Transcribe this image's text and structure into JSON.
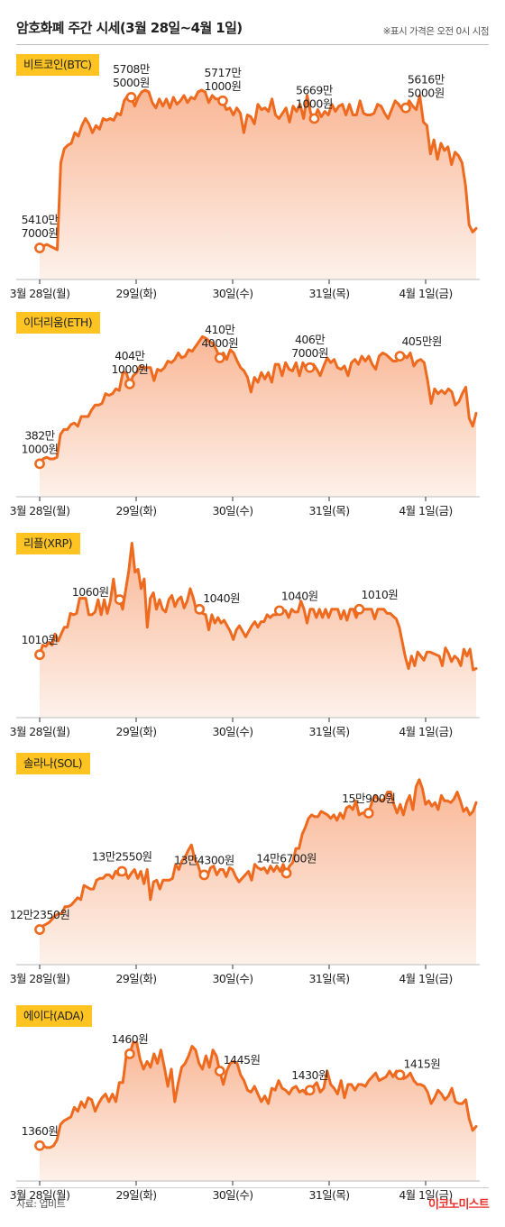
{
  "header": {
    "title": "암호화폐 주간 시세(3월 28일~4월 1일)",
    "note": "※표시 가격은 오전 0시 시점"
  },
  "footer": {
    "source": "자료: 업비트",
    "logo": "이코노미스트"
  },
  "colors": {
    "line": "#ee6a1e",
    "fill_top": "#f9b796",
    "fill_bottom": "#fdf1ea",
    "label_bg": "#ffc421",
    "marker_fill": "#ffffff"
  },
  "chart_data": [
    {
      "type": "area",
      "coin": "비트코인(BTC)",
      "x_ticks": [
        "3월 28일(월)",
        "29일(화)",
        "30일(수)",
        "31일(목)",
        "4월 1일(금)"
      ],
      "ylim": [
        0.055,
        0.96
      ],
      "series": [
        {
          "values": [
            0.07,
            0.08,
            0.09,
            0.08,
            0.07,
            0.06,
            0.55,
            0.63,
            0.65,
            0.66,
            0.72,
            0.7,
            0.76,
            0.8,
            0.77,
            0.72,
            0.76,
            0.74,
            0.8,
            0.79,
            0.8,
            0.79,
            0.83,
            0.82,
            0.9,
            0.93,
            0.92,
            0.87,
            0.92,
            0.95,
            0.96,
            0.95,
            0.89,
            0.86,
            0.91,
            0.87,
            0.91,
            0.86,
            0.92,
            0.88,
            0.9,
            0.93,
            0.89,
            0.92,
            0.91,
            0.95,
            0.96,
            0.95,
            0.89,
            0.93,
            0.91,
            0.91,
            0.9,
            0.85,
            0.86,
            0.82,
            0.86,
            0.83,
            0.72,
            0.82,
            0.81,
            0.77,
            0.88,
            0.85,
            0.86,
            0.84,
            0.91,
            0.82,
            0.8,
            0.83,
            0.86,
            0.78,
            0.87,
            0.84,
            0.88,
            0.8,
            0.93,
            0.83,
            0.8,
            0.85,
            0.81,
            0.84,
            0.82,
            0.88,
            0.84,
            0.87,
            0.88,
            0.82,
            0.88,
            0.82,
            0.82,
            0.9,
            0.83,
            0.82,
            0.82,
            0.83,
            0.88,
            0.87,
            0.83,
            0.8,
            0.85,
            0.9,
            0.88,
            0.85,
            0.86,
            0.9,
            0.87,
            0.85,
            0.93,
            0.78,
            0.76,
            0.6,
            0.68,
            0.57,
            0.66,
            0.62,
            0.64,
            0.54,
            0.61,
            0.59,
            0.55,
            0.42,
            0.2,
            0.16,
            0.18
          ]
        }
      ],
      "points": [
        {
          "index": 0,
          "label": [
            "5410만",
            "7000원"
          ],
          "pos": "above"
        },
        {
          "index": 26,
          "label": [
            "5708만",
            "5000원"
          ],
          "pos": "above"
        },
        {
          "index": 52,
          "label": [
            "5717만",
            "1000원"
          ],
          "pos": "above"
        },
        {
          "index": 78,
          "label": [
            "5669만",
            "1000원"
          ],
          "pos": "above"
        },
        {
          "index": 104,
          "label": [
            "5616만",
            "5000원"
          ],
          "pos": "above-right"
        }
      ]
    },
    {
      "type": "area",
      "coin": "이더리움(ETH)",
      "x_ticks": [
        "3월 28일(월)",
        "29일(화)",
        "30일(수)",
        "31일(목)",
        "4월 1일(금)"
      ],
      "ylim": [
        0.1,
        0.93
      ],
      "series": [
        {
          "values": [
            0.12,
            0.15,
            0.16,
            0.15,
            0.15,
            0.16,
            0.3,
            0.33,
            0.33,
            0.36,
            0.37,
            0.35,
            0.41,
            0.41,
            0.41,
            0.45,
            0.48,
            0.48,
            0.49,
            0.55,
            0.54,
            0.55,
            0.58,
            0.57,
            0.68,
            0.68,
            0.61,
            0.66,
            0.68,
            0.72,
            0.71,
            0.71,
            0.71,
            0.63,
            0.7,
            0.69,
            0.71,
            0.75,
            0.74,
            0.76,
            0.8,
            0.77,
            0.78,
            0.82,
            0.81,
            0.84,
            0.87,
            0.9,
            0.89,
            0.87,
            0.86,
            0.82,
            0.77,
            0.8,
            0.76,
            0.82,
            0.8,
            0.75,
            0.71,
            0.69,
            0.65,
            0.56,
            0.65,
            0.62,
            0.68,
            0.64,
            0.68,
            0.62,
            0.73,
            0.73,
            0.66,
            0.74,
            0.7,
            0.69,
            0.74,
            0.66,
            0.74,
            0.7,
            0.71,
            0.73,
            0.7,
            0.66,
            0.72,
            0.77,
            0.74,
            0.76,
            0.71,
            0.7,
            0.72,
            0.66,
            0.74,
            0.76,
            0.73,
            0.78,
            0.75,
            0.78,
            0.73,
            0.7,
            0.78,
            0.8,
            0.79,
            0.77,
            0.75,
            0.75,
            0.78,
            0.79,
            0.77,
            0.8,
            0.72,
            0.75,
            0.76,
            0.74,
            0.63,
            0.49,
            0.58,
            0.55,
            0.57,
            0.55,
            0.58,
            0.56,
            0.48,
            0.5,
            0.55,
            0.59,
            0.4,
            0.35,
            0.43
          ]
        }
      ],
      "points": [
        {
          "index": 0,
          "label": [
            "382만",
            "1000원"
          ],
          "pos": "above"
        },
        {
          "index": 26,
          "label": [
            "404만",
            "1000원"
          ],
          "pos": "above"
        },
        {
          "index": 52,
          "label": [
            "410만",
            "4000원"
          ],
          "pos": "above"
        },
        {
          "index": 78,
          "label": [
            "406만",
            "7000원"
          ],
          "pos": "above"
        },
        {
          "index": 104,
          "label": [
            "405만원"
          ],
          "pos": "above-right"
        }
      ]
    },
    {
      "type": "area",
      "coin": "리플(XRP)",
      "x_ticks": [
        "3월 28일(월)",
        "29일(화)",
        "30일(수)",
        "31일(목)",
        "4월 1일(금)"
      ],
      "ylim": [
        0.04,
        0.97
      ],
      "series": [
        {
          "values": [
            0.15,
            0.22,
            0.21,
            0.24,
            0.22,
            0.3,
            0.25,
            0.3,
            0.35,
            0.35,
            0.45,
            0.44,
            0.45,
            0.56,
            0.56,
            0.56,
            0.44,
            0.44,
            0.46,
            0.55,
            0.44,
            0.55,
            0.45,
            0.54,
            0.7,
            0.54,
            0.55,
            0.48,
            0.62,
            0.76,
            0.96,
            0.75,
            0.77,
            0.63,
            0.7,
            0.35,
            0.56,
            0.6,
            0.48,
            0.55,
            0.48,
            0.46,
            0.55,
            0.58,
            0.5,
            0.55,
            0.57,
            0.49,
            0.54,
            0.63,
            0.56,
            0.47,
            0.48,
            0.45,
            0.44,
            0.33,
            0.44,
            0.38,
            0.42,
            0.38,
            0.4,
            0.36,
            0.32,
            0.26,
            0.33,
            0.36,
            0.32,
            0.28,
            0.32,
            0.36,
            0.39,
            0.35,
            0.39,
            0.39,
            0.44,
            0.42,
            0.44,
            0.44,
            0.47,
            0.47,
            0.47,
            0.42,
            0.48,
            0.46,
            0.46,
            0.54,
            0.48,
            0.38,
            0.48,
            0.48,
            0.42,
            0.48,
            0.42,
            0.48,
            0.42,
            0.48,
            0.48,
            0.48,
            0.41,
            0.47,
            0.4,
            0.48,
            0.48,
            0.42,
            0.48,
            0.48,
            0.48,
            0.48,
            0.48,
            0.41,
            0.48,
            0.48,
            0.48,
            0.45,
            0.45,
            0.43,
            0.41,
            0.35,
            0.24,
            0.13,
            0.05,
            0.14,
            0.07,
            0.17,
            0.14,
            0.11,
            0.17,
            0.17,
            0.16,
            0.15,
            0.14,
            0.07,
            0.2,
            0.16,
            0.1,
            0.14,
            0.12,
            0.07,
            0.19,
            0.14,
            0.19,
            0.04,
            0.05
          ]
        }
      ],
      "points": [
        {
          "index": 0,
          "label": [
            "1010원"
          ],
          "pos": "above"
        },
        {
          "index": 26,
          "label": [
            "1060원"
          ],
          "pos": "above-left"
        },
        {
          "index": 52,
          "label": [
            "1040원"
          ],
          "pos": "right"
        },
        {
          "index": 78,
          "label": [
            "1040원"
          ],
          "pos": "above-right"
        },
        {
          "index": 104,
          "label": [
            "1010원"
          ],
          "pos": "above-right"
        }
      ]
    },
    {
      "type": "area",
      "coin": "솔라나(SOL)",
      "x_ticks": [
        "3월 28일(월)",
        "29일(화)",
        "30일(수)",
        "31일(목)",
        "4월 1일(금)"
      ],
      "ylim": [
        0.06,
        0.97
      ],
      "series": [
        {
          "values": [
            0.07,
            0.09,
            0.1,
            0.11,
            0.13,
            0.15,
            0.16,
            0.16,
            0.2,
            0.2,
            0.21,
            0.23,
            0.25,
            0.24,
            0.32,
            0.31,
            0.3,
            0.3,
            0.35,
            0.36,
            0.36,
            0.38,
            0.38,
            0.36,
            0.4,
            0.38,
            0.4,
            0.4,
            0.36,
            0.39,
            0.41,
            0.36,
            0.4,
            0.33,
            0.41,
            0.24,
            0.34,
            0.35,
            0.3,
            0.35,
            0.35,
            0.35,
            0.36,
            0.44,
            0.41,
            0.46,
            0.48,
            0.52,
            0.55,
            0.47,
            0.44,
            0.38,
            0.38,
            0.37,
            0.42,
            0.43,
            0.38,
            0.41,
            0.41,
            0.37,
            0.42,
            0.41,
            0.37,
            0.34,
            0.36,
            0.38,
            0.4,
            0.35,
            0.44,
            0.42,
            0.41,
            0.42,
            0.39,
            0.43,
            0.4,
            0.43,
            0.4,
            0.44,
            0.39,
            0.43,
            0.45,
            0.53,
            0.53,
            0.61,
            0.65,
            0.7,
            0.72,
            0.71,
            0.71,
            0.74,
            0.73,
            0.72,
            0.7,
            0.72,
            0.69,
            0.73,
            0.7,
            0.76,
            0.77,
            0.75,
            0.8,
            0.72,
            0.73,
            0.73,
            0.73,
            0.79,
            0.83,
            0.81,
            0.8,
            0.81,
            0.85,
            0.85,
            0.78,
            0.73,
            0.78,
            0.72,
            0.79,
            0.83,
            0.75,
            0.88,
            0.92,
            0.87,
            0.78,
            0.8,
            0.77,
            0.79,
            0.75,
            0.83,
            0.8,
            0.8,
            0.79,
            0.81,
            0.85,
            0.8,
            0.74,
            0.76,
            0.72,
            0.74,
            0.79
          ]
        }
      ],
      "points": [
        {
          "index": 0,
          "label": [
            "12만2350원"
          ],
          "pos": "above"
        },
        {
          "index": 26,
          "label": [
            "13만2550원"
          ],
          "pos": "above"
        },
        {
          "index": 52,
          "label": [
            "13만4300원"
          ],
          "pos": "above"
        },
        {
          "index": 78,
          "label": [
            "14만6700원"
          ],
          "pos": "above"
        },
        {
          "index": 104,
          "label": [
            "15만900원"
          ],
          "pos": "above"
        }
      ]
    },
    {
      "type": "area",
      "coin": "에이다(ADA)",
      "x_ticks": [
        "3월 28일(월)",
        "29일(화)",
        "30일(수)",
        "31일(목)",
        "4월 1일(금)"
      ],
      "ylim": [
        0.3,
        0.96
      ],
      "series": [
        {
          "values": [
            0.32,
            0.32,
            0.31,
            0.31,
            0.32,
            0.35,
            0.43,
            0.45,
            0.46,
            0.47,
            0.52,
            0.5,
            0.55,
            0.52,
            0.57,
            0.56,
            0.5,
            0.54,
            0.57,
            0.59,
            0.55,
            0.59,
            0.55,
            0.65,
            0.65,
            0.79,
            0.8,
            0.86,
            0.86,
            0.77,
            0.72,
            0.76,
            0.73,
            0.8,
            0.75,
            0.82,
            0.73,
            0.63,
            0.72,
            0.55,
            0.65,
            0.73,
            0.75,
            0.79,
            0.84,
            0.82,
            0.75,
            0.72,
            0.79,
            0.73,
            0.82,
            0.79,
            0.71,
            0.64,
            0.71,
            0.75,
            0.76,
            0.75,
            0.69,
            0.66,
            0.61,
            0.6,
            0.63,
            0.59,
            0.55,
            0.58,
            0.54,
            0.62,
            0.61,
            0.66,
            0.62,
            0.61,
            0.59,
            0.62,
            0.63,
            0.6,
            0.61,
            0.59,
            0.61,
            0.63,
            0.65,
            0.6,
            0.62,
            0.71,
            0.64,
            0.62,
            0.59,
            0.66,
            0.57,
            0.64,
            0.64,
            0.61,
            0.64,
            0.64,
            0.63,
            0.66,
            0.68,
            0.7,
            0.66,
            0.67,
            0.68,
            0.71,
            0.68,
            0.71,
            0.69,
            0.67,
            0.68,
            0.7,
            0.66,
            0.64,
            0.64,
            0.63,
            0.6,
            0.54,
            0.57,
            0.61,
            0.59,
            0.56,
            0.58,
            0.62,
            0.55,
            0.54,
            0.54,
            0.56,
            0.46,
            0.4,
            0.42
          ]
        }
      ],
      "points": [
        {
          "index": 0,
          "label": [
            "1360원"
          ],
          "pos": "above"
        },
        {
          "index": 26,
          "label": [
            "1460원"
          ],
          "pos": "above"
        },
        {
          "index": 52,
          "label": [
            "1445원"
          ],
          "pos": "right"
        },
        {
          "index": 78,
          "label": [
            "1430원"
          ],
          "pos": "above"
        },
        {
          "index": 104,
          "label": [
            "1415원"
          ],
          "pos": "right"
        }
      ]
    }
  ]
}
